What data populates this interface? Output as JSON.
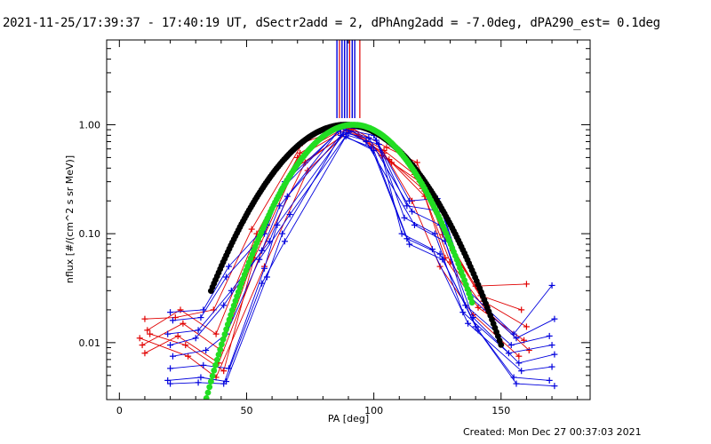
{
  "header": {
    "title": "2021-11-25/17:39:37 - 17:40:19 UT, dSectr2add = 2, dPhAng2add = -7.0deg, dPA290_est=  0.1deg"
  },
  "footer": {
    "created": "Created: Mon Dec 27 00:37:03 2021"
  },
  "chart_data": {
    "type": "line",
    "xlabel": "PA [deg]",
    "ylabel": "nflux [#/(cm^2 s sr MeV)]",
    "xlim": [
      -5,
      185
    ],
    "ylim": [
      0.003,
      6
    ],
    "yscale": "log",
    "grid": false,
    "x_ticks": [
      0,
      50,
      100,
      150
    ],
    "x_tick_labels": [
      "0",
      "50",
      "100",
      "150"
    ],
    "y_ticks": [
      0.01,
      0.1,
      1.0
    ],
    "y_tick_labels": [
      "0.01",
      "0.10",
      "1.00"
    ],
    "colors": {
      "red": "#e00000",
      "blue": "#0000dd",
      "green": "#22dd22",
      "black": "#000000"
    },
    "vertical_lines": {
      "note": "red and blue markers near 90 deg, top",
      "red_x": [
        86.5,
        90.5,
        94.5
      ],
      "blue_x": [
        85.5,
        87.5,
        88.5,
        89.5,
        91.5,
        92.5
      ],
      "y_from": 1.15
    },
    "fits": [
      {
        "name": "",
        "color": "#000000",
        "center": 89,
        "sigma": 20,
        "x_from": 36,
        "x_to": 150
      },
      {
        "name": "",
        "color": "#22dd22",
        "center": 92,
        "sigma": 17,
        "x_from": 18,
        "x_to": 139
      }
    ],
    "series": [
      {
        "name": "",
        "color": "#e00000",
        "x": [
          10,
          22,
          37,
          52,
          72,
          90,
          105,
          117,
          127,
          140,
          160
        ],
        "y": [
          0.0165,
          0.017,
          0.02,
          0.11,
          0.68,
          0.97,
          0.62,
          0.45,
          0.098,
          0.033,
          0.0345
        ]
      },
      {
        "name": "",
        "color": "#e00000",
        "x": [
          11,
          24,
          38,
          54,
          71,
          89,
          104,
          116,
          129,
          142,
          158
        ],
        "y": [
          0.013,
          0.02,
          0.012,
          0.1,
          0.55,
          0.95,
          0.58,
          0.35,
          0.09,
          0.027,
          0.02
        ]
      },
      {
        "name": "",
        "color": "#e00000",
        "x": [
          9,
          25,
          40,
          55,
          70,
          90,
          103,
          118,
          131,
          143,
          160
        ],
        "y": [
          0.0095,
          0.015,
          0.0085,
          0.085,
          0.5,
          0.93,
          0.52,
          0.3,
          0.07,
          0.024,
          0.014
        ]
      },
      {
        "name": "",
        "color": "#e00000",
        "x": [
          10,
          23,
          39,
          56,
          73,
          91,
          106,
          119,
          128,
          141,
          159
        ],
        "y": [
          0.008,
          0.0115,
          0.0065,
          0.07,
          0.45,
          0.9,
          0.48,
          0.26,
          0.06,
          0.021,
          0.0105
        ]
      },
      {
        "name": "",
        "color": "#e00000",
        "x": [
          12,
          26,
          41,
          53,
          69,
          92,
          107,
          120,
          130,
          144,
          161
        ],
        "y": [
          0.012,
          0.0095,
          0.0055,
          0.06,
          0.4,
          0.92,
          0.45,
          0.22,
          0.055,
          0.02,
          0.0085
        ]
      },
      {
        "name": "",
        "color": "#e00000",
        "x": [
          8,
          27,
          38,
          57,
          74,
          90,
          104,
          115,
          126,
          139,
          157
        ],
        "y": [
          0.011,
          0.0075,
          0.0048,
          0.05,
          0.38,
          0.88,
          0.55,
          0.2,
          0.05,
          0.018,
          0.0075
        ]
      },
      {
        "name": "",
        "color": "#0000dd",
        "x": [
          20,
          33,
          43,
          58,
          65,
          88,
          99,
          114,
          125,
          137,
          155,
          170
        ],
        "y": [
          0.019,
          0.02,
          0.05,
          0.12,
          0.3,
          0.95,
          0.88,
          0.2,
          0.21,
          0.03,
          0.012,
          0.0335
        ]
      },
      {
        "name": "",
        "color": "#0000dd",
        "x": [
          21,
          32,
          42,
          57,
          64,
          87,
          100,
          113,
          127,
          138,
          156,
          171
        ],
        "y": [
          0.016,
          0.017,
          0.04,
          0.1,
          0.26,
          0.92,
          0.8,
          0.18,
          0.16,
          0.026,
          0.011,
          0.0165
        ]
      },
      {
        "name": "",
        "color": "#0000dd",
        "x": [
          19,
          31,
          44,
          59,
          66,
          89,
          98,
          115,
          126,
          136,
          154,
          169
        ],
        "y": [
          0.012,
          0.013,
          0.03,
          0.085,
          0.22,
          0.9,
          0.76,
          0.16,
          0.12,
          0.022,
          0.0095,
          0.0115
        ]
      },
      {
        "name": "",
        "color": "#0000dd",
        "x": [
          20,
          30,
          41,
          56,
          63,
          86,
          101,
          112,
          124,
          135,
          153,
          170
        ],
        "y": [
          0.0095,
          0.011,
          0.022,
          0.07,
          0.18,
          0.87,
          0.72,
          0.14,
          0.1,
          0.019,
          0.008,
          0.0095
        ]
      },
      {
        "name": "",
        "color": "#0000dd",
        "x": [
          21,
          34,
          42,
          55,
          67,
          90,
          97,
          116,
          128,
          139,
          157,
          171
        ],
        "y": [
          0.0075,
          0.0085,
          0.012,
          0.058,
          0.15,
          0.85,
          0.7,
          0.12,
          0.085,
          0.017,
          0.0065,
          0.0078
        ]
      },
      {
        "name": "",
        "color": "#0000dd",
        "x": [
          20,
          33,
          43,
          57,
          62,
          88,
          102,
          111,
          123,
          137,
          158,
          170
        ],
        "y": [
          0.0058,
          0.0062,
          0.0058,
          0.048,
          0.12,
          0.82,
          0.66,
          0.1,
          0.072,
          0.015,
          0.0055,
          0.006
        ]
      },
      {
        "name": "",
        "color": "#0000dd",
        "x": [
          19,
          32,
          42,
          58,
          64,
          87,
          99,
          113,
          126,
          140,
          155,
          169
        ],
        "y": [
          0.0045,
          0.0048,
          0.0044,
          0.04,
          0.1,
          0.8,
          0.62,
          0.09,
          0.065,
          0.014,
          0.0048,
          0.0045
        ]
      },
      {
        "name": "",
        "color": "#0000dd",
        "x": [
          20,
          31,
          41,
          56,
          65,
          89,
          100,
          114,
          127,
          141,
          156,
          171
        ],
        "y": [
          0.0042,
          0.0043,
          0.0042,
          0.035,
          0.085,
          0.78,
          0.58,
          0.08,
          0.058,
          0.013,
          0.0042,
          0.004
        ]
      }
    ]
  }
}
